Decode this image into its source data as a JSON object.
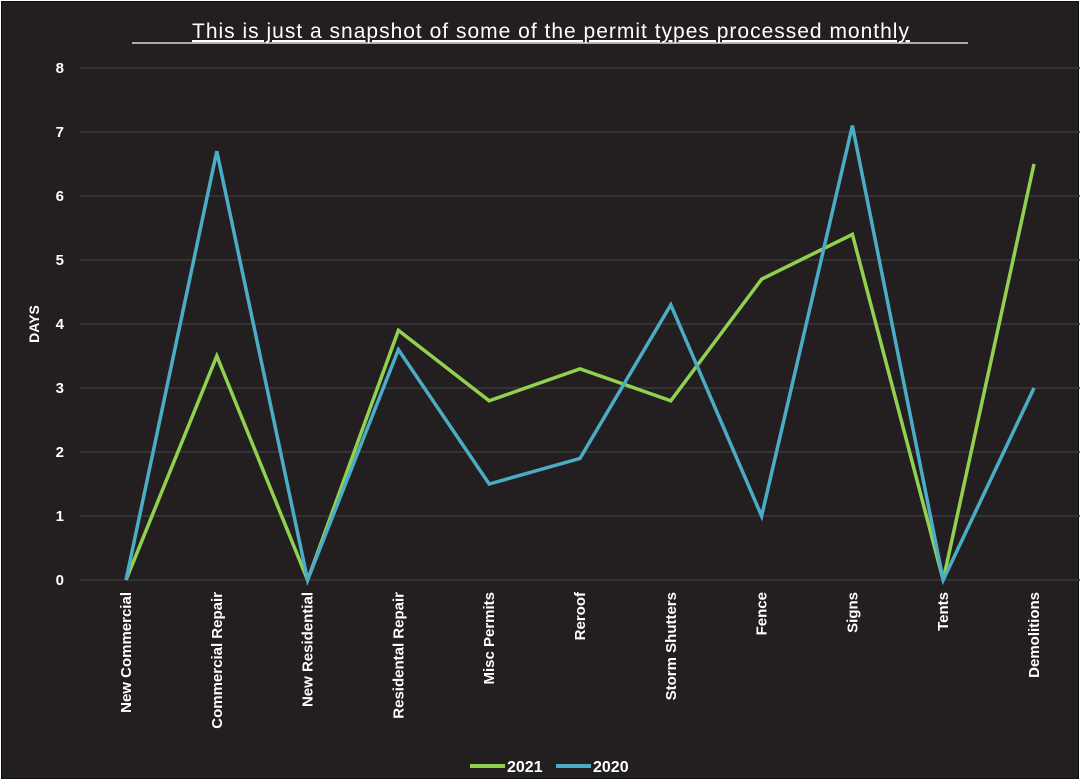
{
  "chart_data": {
    "type": "line",
    "title": "This is just a snapshot of some of the permit types processed monthly",
    "ylabel": "DAYS",
    "xlabel": "",
    "ylim": [
      0,
      8
    ],
    "yticks": [
      0,
      1,
      2,
      3,
      4,
      5,
      6,
      7,
      8
    ],
    "grid": true,
    "legend_position": "bottom",
    "categories": [
      "New Commercial",
      "Commercial Repair",
      "New Residential",
      "Residental Repair",
      "Misc Permits",
      "Reroof",
      "Storm Shutters",
      "Fence",
      "Signs",
      "Tents",
      "Demolitions"
    ],
    "series": [
      {
        "name": "2021",
        "color": "#92d050",
        "values": [
          0,
          3.5,
          0,
          3.9,
          2.8,
          3.3,
          2.8,
          4.7,
          5.4,
          0,
          6.5
        ]
      },
      {
        "name": "2020",
        "color": "#4bacc6",
        "values": [
          0,
          6.7,
          0,
          3.6,
          1.5,
          1.9,
          4.3,
          1.0,
          7.1,
          0,
          3.0
        ]
      }
    ]
  },
  "colors": {
    "background": "#231f20",
    "gridline": "#3a3a3a",
    "text": "#ffffff"
  }
}
